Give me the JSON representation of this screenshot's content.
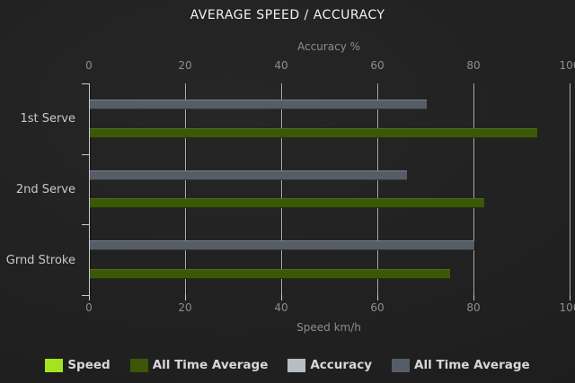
{
  "title": "AVERAGE SPEED / ACCURACY",
  "colors": {
    "background": "#202020",
    "grid": "#aeb1b4",
    "axis_line": "#c9cbcd",
    "tick_text": "#8d8d8d",
    "title_text": "#f1f1f1",
    "category_text": "#c9c9c9",
    "legend_text": "#d8d8d8",
    "speed": "#a4e41e",
    "speed_all_time_average": "#3b5707",
    "accuracy": "#b6bdc3",
    "accuracy_all_time_average": "#565d66"
  },
  "chart_data": {
    "type": "bar",
    "orientation": "horizontal",
    "title": "AVERAGE SPEED / ACCURACY",
    "categories": [
      "1st Serve",
      "2nd Serve",
      "Grnd Stroke"
    ],
    "axes": {
      "top": {
        "label": "Accuracy %",
        "ticks": [
          0,
          20,
          40,
          60,
          80,
          100
        ],
        "range": [
          0,
          100
        ]
      },
      "bottom": {
        "label": "Speed km/h",
        "ticks": [
          0,
          20,
          40,
          60,
          80,
          100
        ],
        "range": [
          0,
          100
        ]
      }
    },
    "series": [
      {
        "name": "Speed",
        "color": "#a4e41e",
        "axis": "bottom",
        "values": [
          0,
          0,
          0
        ]
      },
      {
        "name": "All Time Average",
        "color": "#3b5707",
        "axis": "bottom",
        "values": [
          93,
          82,
          75
        ]
      },
      {
        "name": "Accuracy",
        "color": "#b6bdc3",
        "axis": "top",
        "values": [
          0,
          0,
          0
        ]
      },
      {
        "name": "All Time Average",
        "color": "#565d66",
        "axis": "top",
        "values": [
          70,
          66,
          80
        ]
      }
    ],
    "legend": {
      "position": "bottom",
      "items": [
        "Speed",
        "All Time Average",
        "Accuracy",
        "All Time Average"
      ]
    },
    "grid": true
  }
}
